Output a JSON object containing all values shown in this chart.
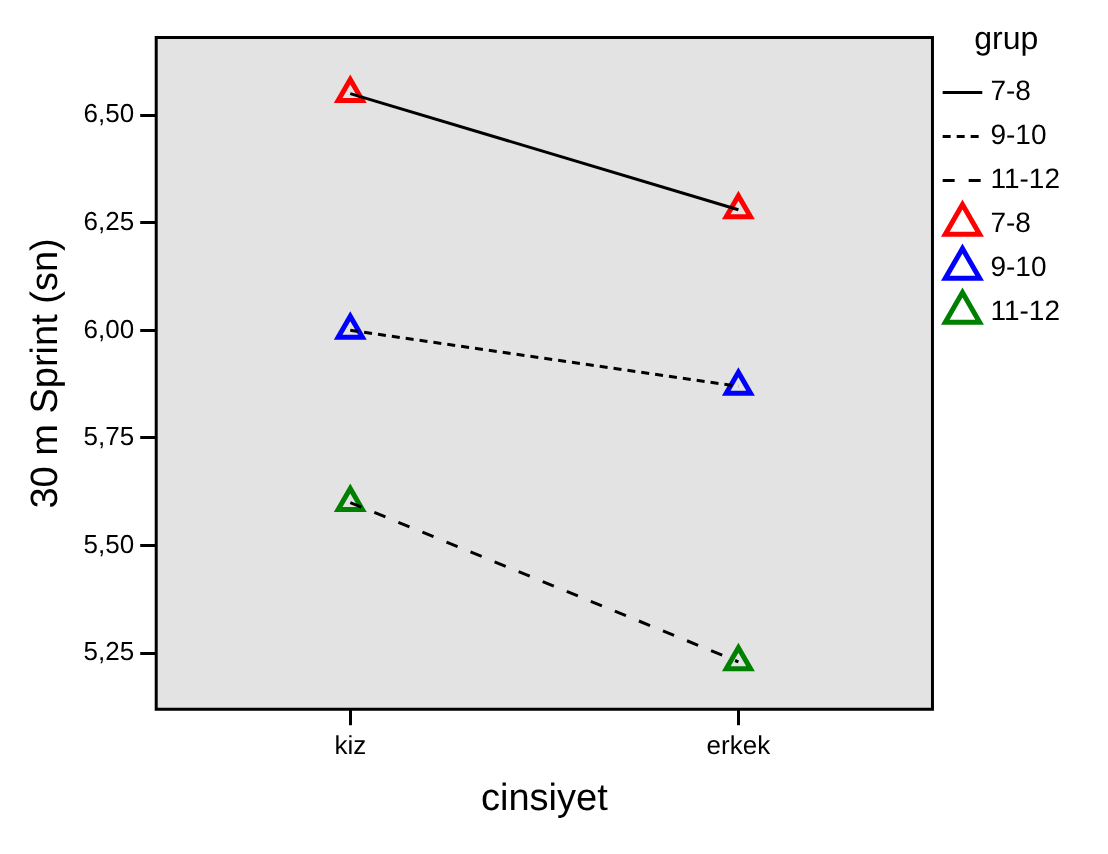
{
  "chart_data": {
    "type": "line",
    "xlabel": "cinsiyet",
    "ylabel": "30 m Sprint (sn)",
    "legend_title": "grup",
    "legend": "right",
    "grid": false,
    "categories": [
      "kiz",
      "erkek"
    ],
    "ylim": [
      5.12,
      6.68
    ],
    "yticks": [
      {
        "value": 5.25,
        "label": "5,25"
      },
      {
        "value": 5.5,
        "label": "5,50"
      },
      {
        "value": 5.75,
        "label": "5,75"
      },
      {
        "value": 6.0,
        "label": "6,00"
      },
      {
        "value": 6.25,
        "label": "6,25"
      },
      {
        "value": 6.5,
        "label": "6,50"
      }
    ],
    "series": [
      {
        "name": "7-8",
        "type": "line",
        "color": "#000000",
        "line_style": "solid",
        "marker": "none",
        "values": [
          6.55,
          6.28
        ]
      },
      {
        "name": "9-10",
        "type": "line",
        "color": "#000000",
        "line_style": "dotted",
        "marker": "none",
        "values": [
          6.0,
          5.87
        ]
      },
      {
        "name": "11-12",
        "type": "line",
        "color": "#000000",
        "line_style": "dashed",
        "marker": "none",
        "values": [
          5.6,
          5.23
        ]
      },
      {
        "name": "7-8",
        "type": "scatter",
        "color": "#ff0000",
        "marker": "triangle",
        "values": [
          6.55,
          6.28
        ]
      },
      {
        "name": "9-10",
        "type": "scatter",
        "color": "#0000ff",
        "marker": "triangle",
        "values": [
          6.0,
          5.87
        ]
      },
      {
        "name": "11-12",
        "type": "scatter",
        "color": "#008000",
        "marker": "triangle",
        "values": [
          5.6,
          5.23
        ]
      }
    ]
  }
}
